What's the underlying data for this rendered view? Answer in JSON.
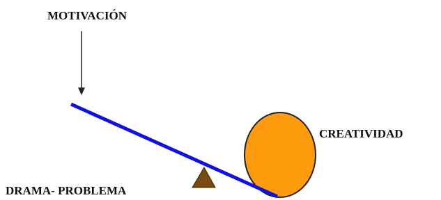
{
  "labels": {
    "top": "MOTIVACIÓN",
    "right": "CREATIVIDAD",
    "bottom": "DRAMA- PROBLEMA"
  }
}
